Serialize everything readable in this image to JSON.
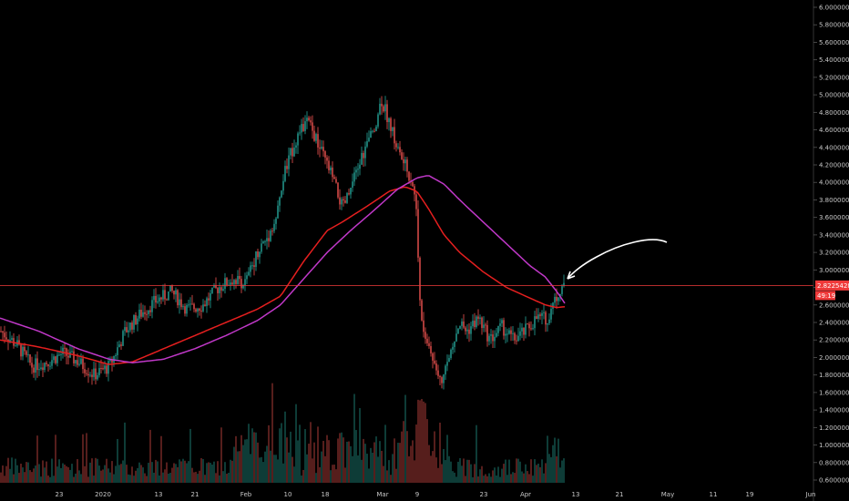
{
  "chart_data": {
    "type": "candlestick",
    "title": "",
    "xlabel": "",
    "ylabel": "",
    "ylim": [
      0.6,
      6.0
    ],
    "grid": false,
    "y_ticks": [
      "6.00000000",
      "5.80000000",
      "5.60000000",
      "5.40000000",
      "5.20000000",
      "5.00000000",
      "4.80000000",
      "4.60000000",
      "4.40000000",
      "4.20000000",
      "4.00000000",
      "3.80000000",
      "3.60000000",
      "3.40000000",
      "3.20000000",
      "3.00000000",
      "2.80000000",
      "2.60000000",
      "2.40000000",
      "2.20000000",
      "2.00000000",
      "1.80000000",
      "1.60000000",
      "1.40000000",
      "1.20000000",
      "1.00000000",
      "0.80000000",
      "0.60000000"
    ],
    "x_ticks": [
      "23",
      "2020",
      "13",
      "21",
      "Feb",
      "10",
      "18",
      "Mar",
      "9",
      "23",
      "Apr",
      "13",
      "21",
      "May",
      "11",
      "19",
      "Jun"
    ],
    "current_price": "2.82254280",
    "countdown": "49:19",
    "price_line_value": 2.8225428,
    "price_series_anchor": [
      [
        0,
        2.3
      ],
      [
        0.02,
        2.15
      ],
      [
        0.04,
        1.9
      ],
      [
        0.06,
        1.95
      ],
      [
        0.08,
        2.05
      ],
      [
        0.1,
        1.95
      ],
      [
        0.12,
        1.8
      ],
      [
        0.14,
        1.9
      ],
      [
        0.16,
        2.3
      ],
      [
        0.18,
        2.5
      ],
      [
        0.2,
        2.65
      ],
      [
        0.22,
        2.75
      ],
      [
        0.24,
        2.55
      ],
      [
        0.26,
        2.6
      ],
      [
        0.28,
        2.8
      ],
      [
        0.3,
        2.9
      ],
      [
        0.315,
        2.85
      ],
      [
        0.33,
        3.2
      ],
      [
        0.345,
        3.4
      ],
      [
        0.355,
        3.6
      ],
      [
        0.365,
        4.1
      ],
      [
        0.38,
        4.5
      ],
      [
        0.395,
        4.7
      ],
      [
        0.41,
        4.4
      ],
      [
        0.425,
        4.1
      ],
      [
        0.44,
        3.7
      ],
      [
        0.45,
        3.9
      ],
      [
        0.465,
        4.3
      ],
      [
        0.48,
        4.6
      ],
      [
        0.49,
        4.95
      ],
      [
        0.5,
        4.7
      ],
      [
        0.51,
        4.4
      ],
      [
        0.52,
        4.2
      ],
      [
        0.53,
        4.0
      ],
      [
        0.535,
        3.7
      ],
      [
        0.54,
        2.6
      ],
      [
        0.545,
        2.3
      ],
      [
        0.55,
        2.15
      ],
      [
        0.56,
        1.9
      ],
      [
        0.57,
        1.75
      ],
      [
        0.58,
        2.1
      ],
      [
        0.59,
        2.4
      ],
      [
        0.6,
        2.3
      ],
      [
        0.615,
        2.45
      ],
      [
        0.63,
        2.2
      ],
      [
        0.645,
        2.35
      ],
      [
        0.66,
        2.2
      ],
      [
        0.675,
        2.3
      ],
      [
        0.69,
        2.45
      ],
      [
        0.705,
        2.45
      ],
      [
        0.715,
        2.7
      ],
      [
        0.725,
        2.85
      ]
    ],
    "series": [
      {
        "color": "#e51f1f",
        "values_anchor": [
          [
            0,
            2.2
          ],
          [
            0.05,
            2.12
          ],
          [
            0.1,
            2.02
          ],
          [
            0.14,
            1.92
          ],
          [
            0.17,
            1.95
          ],
          [
            0.21,
            2.1
          ],
          [
            0.25,
            2.25
          ],
          [
            0.29,
            2.4
          ],
          [
            0.33,
            2.55
          ],
          [
            0.36,
            2.7
          ],
          [
            0.39,
            3.1
          ],
          [
            0.42,
            3.45
          ],
          [
            0.44,
            3.55
          ],
          [
            0.47,
            3.72
          ],
          [
            0.5,
            3.9
          ],
          [
            0.52,
            3.95
          ],
          [
            0.535,
            3.9
          ],
          [
            0.55,
            3.7
          ],
          [
            0.57,
            3.4
          ],
          [
            0.59,
            3.2
          ],
          [
            0.62,
            2.98
          ],
          [
            0.65,
            2.8
          ],
          [
            0.68,
            2.68
          ],
          [
            0.7,
            2.6
          ],
          [
            0.715,
            2.57
          ],
          [
            0.725,
            2.58
          ]
        ]
      },
      {
        "color": "#c038c8",
        "values_anchor": [
          [
            0,
            2.45
          ],
          [
            0.05,
            2.3
          ],
          [
            0.1,
            2.1
          ],
          [
            0.14,
            1.98
          ],
          [
            0.17,
            1.94
          ],
          [
            0.21,
            1.98
          ],
          [
            0.25,
            2.1
          ],
          [
            0.29,
            2.25
          ],
          [
            0.33,
            2.42
          ],
          [
            0.36,
            2.6
          ],
          [
            0.39,
            2.9
          ],
          [
            0.42,
            3.2
          ],
          [
            0.45,
            3.45
          ],
          [
            0.48,
            3.68
          ],
          [
            0.51,
            3.92
          ],
          [
            0.535,
            4.05
          ],
          [
            0.55,
            4.08
          ],
          [
            0.57,
            3.98
          ],
          [
            0.59,
            3.8
          ],
          [
            0.62,
            3.55
          ],
          [
            0.65,
            3.3
          ],
          [
            0.68,
            3.05
          ],
          [
            0.7,
            2.92
          ],
          [
            0.715,
            2.75
          ],
          [
            0.725,
            2.62
          ]
        ]
      }
    ]
  },
  "colors": {
    "up": "#26a69a",
    "down": "#ef5350",
    "price_line": "#ef3a3a",
    "ma_fast": "#e51f1f",
    "ma_slow": "#c038c8",
    "axis_text": "#c8c8c8",
    "badge_bg": "#ef3a3a"
  }
}
